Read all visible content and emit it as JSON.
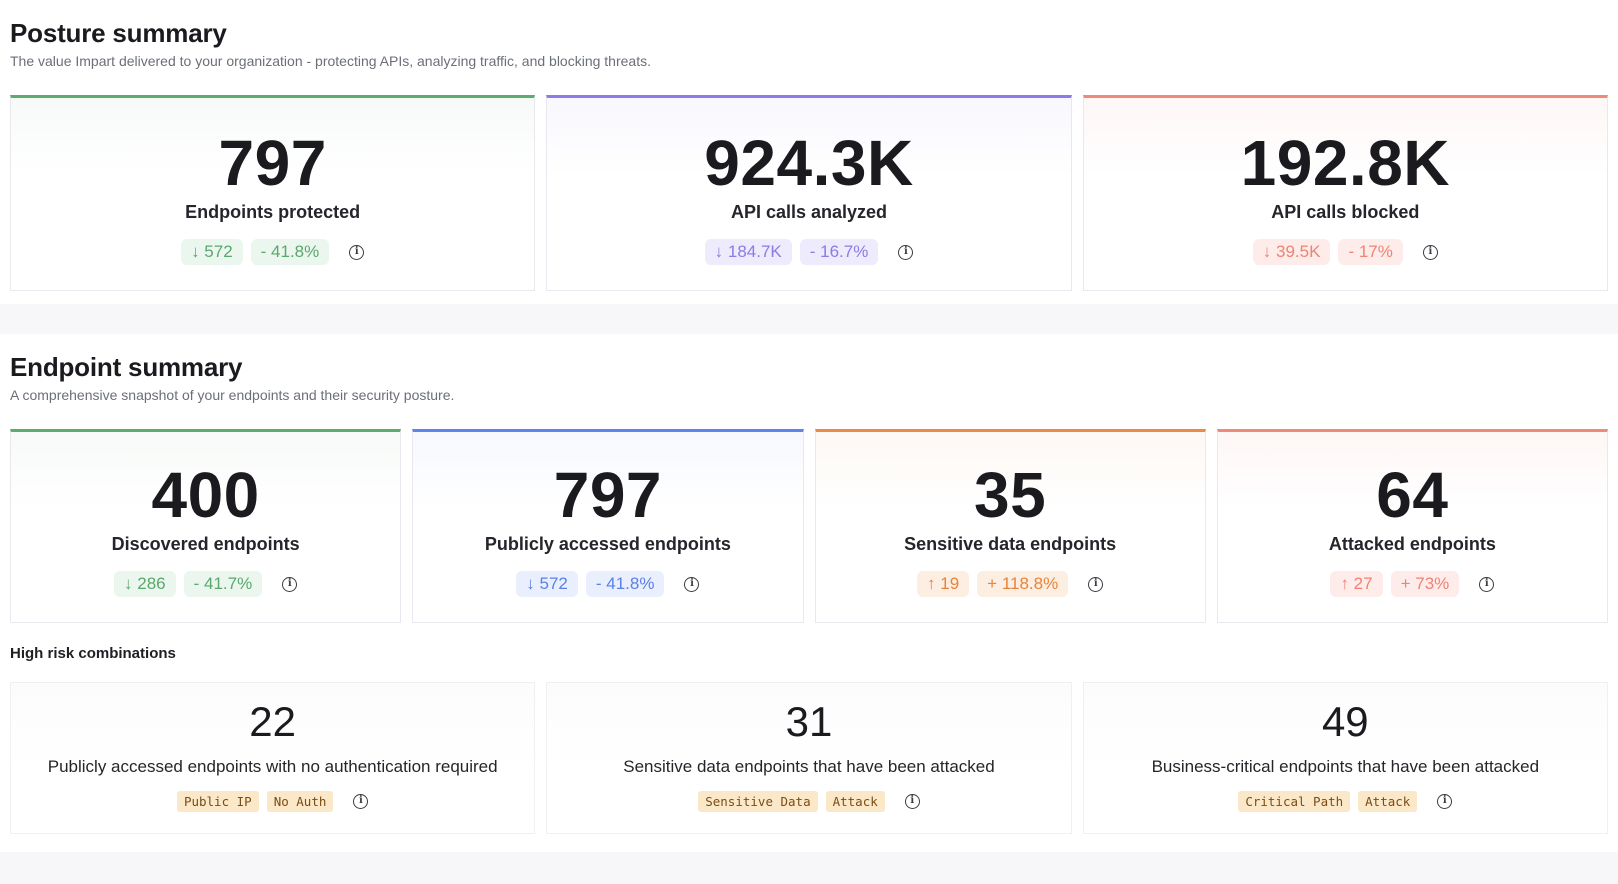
{
  "posture": {
    "title": "Posture summary",
    "subtitle": "The value Impart delivered to your organization - protecting APIs, analyzing traffic, and blocking threats.",
    "cards": [
      {
        "value": "797",
        "label": "Endpoints protected",
        "delta": "↓ 572",
        "pct": "- 41.8%",
        "accent": "#5cad6d"
      },
      {
        "value": "924.3K",
        "label": "API calls analyzed",
        "delta": "↓ 184.7K",
        "pct": "- 16.7%",
        "accent": "#8c7be8"
      },
      {
        "value": "192.8K",
        "label": "API calls blocked",
        "delta": "↓ 39.5K",
        "pct": "- 17%",
        "accent": "#ef8a7b"
      }
    ]
  },
  "endpoint": {
    "title": "Endpoint summary",
    "subtitle": "A comprehensive snapshot of your endpoints and their security posture.",
    "cards": [
      {
        "value": "400",
        "label": "Discovered endpoints",
        "delta": "↓ 286",
        "pct": "- 41.7%",
        "accent": "#5cad6d"
      },
      {
        "value": "797",
        "label": "Publicly accessed endpoints",
        "delta": "↓ 572",
        "pct": "- 41.8%",
        "accent": "#5e83ea"
      },
      {
        "value": "35",
        "label": "Sensitive data endpoints",
        "delta": "↑ 19",
        "pct": "+ 118.8%",
        "accent": "#ec8a45"
      },
      {
        "value": "64",
        "label": "Attacked endpoints",
        "delta": "↑ 27",
        "pct": "+ 73%",
        "accent": "#ef8a7b"
      }
    ]
  },
  "high_risk": {
    "title": "High risk combinations",
    "cards": [
      {
        "value": "22",
        "label": "Publicly accessed endpoints with no authentication required",
        "tags": [
          "Public IP",
          "No Auth"
        ]
      },
      {
        "value": "31",
        "label": "Sensitive data endpoints that have been attacked",
        "tags": [
          "Sensitive Data",
          "Attack"
        ]
      },
      {
        "value": "49",
        "label": "Business-critical endpoints that have been attacked",
        "tags": [
          "Critical Path",
          "Attack"
        ]
      }
    ]
  },
  "icons": {
    "info": "info-circle-icon",
    "info_glyph": "i"
  }
}
